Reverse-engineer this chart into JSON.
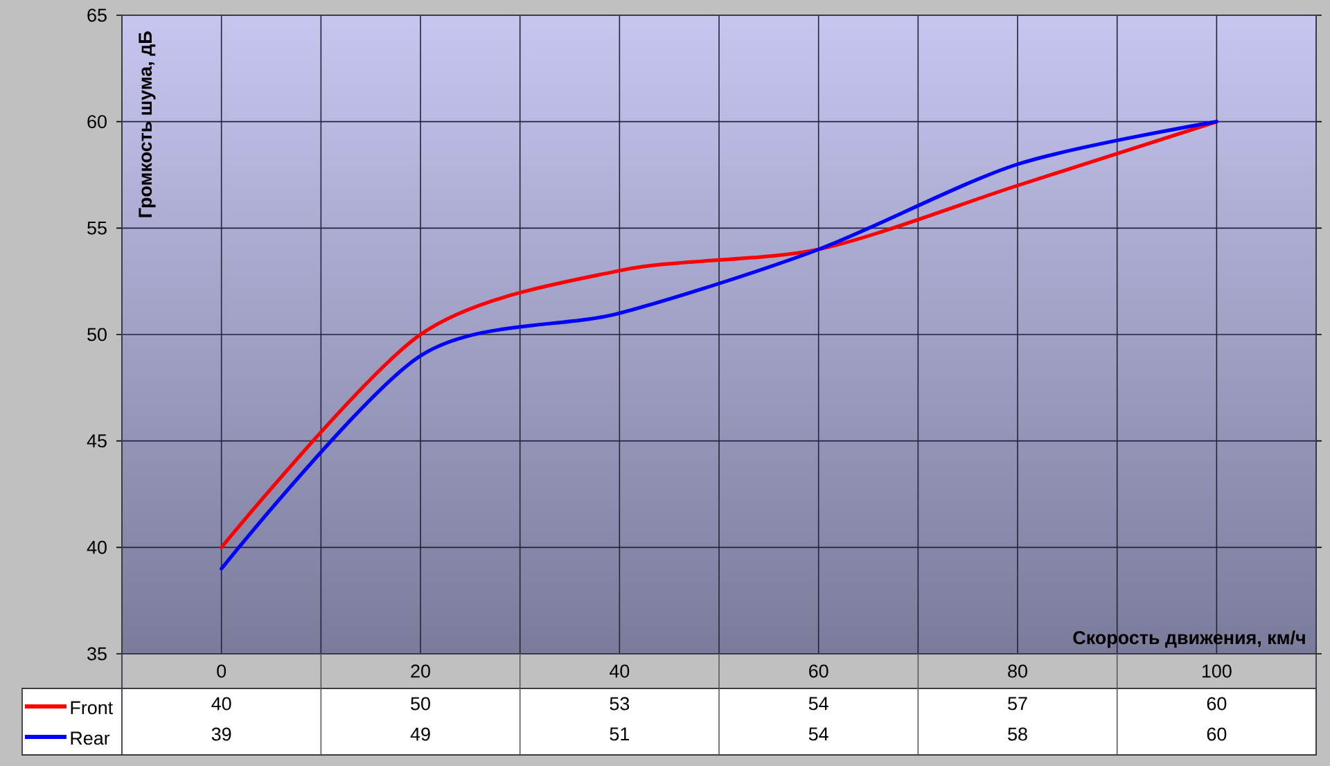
{
  "chart_data": {
    "type": "line",
    "xlabel": "Скорость движения, км/ч",
    "ylabel": "Громкость шума, дБ",
    "categories": [
      "0",
      "20",
      "40",
      "60",
      "80",
      "100"
    ],
    "series": [
      {
        "name": "Front",
        "color": "#ff0000",
        "values": [
          40,
          50,
          53,
          54,
          57,
          60
        ]
      },
      {
        "name": "Rear",
        "color": "#0000ff",
        "values": [
          39,
          49,
          51,
          54,
          58,
          60
        ]
      }
    ],
    "ylim": [
      35,
      65
    ],
    "yticks": [
      35,
      40,
      45,
      50,
      55,
      60,
      65
    ],
    "grid": true,
    "legend": "bottom left",
    "data_labels": true,
    "line_style": "solid"
  }
}
